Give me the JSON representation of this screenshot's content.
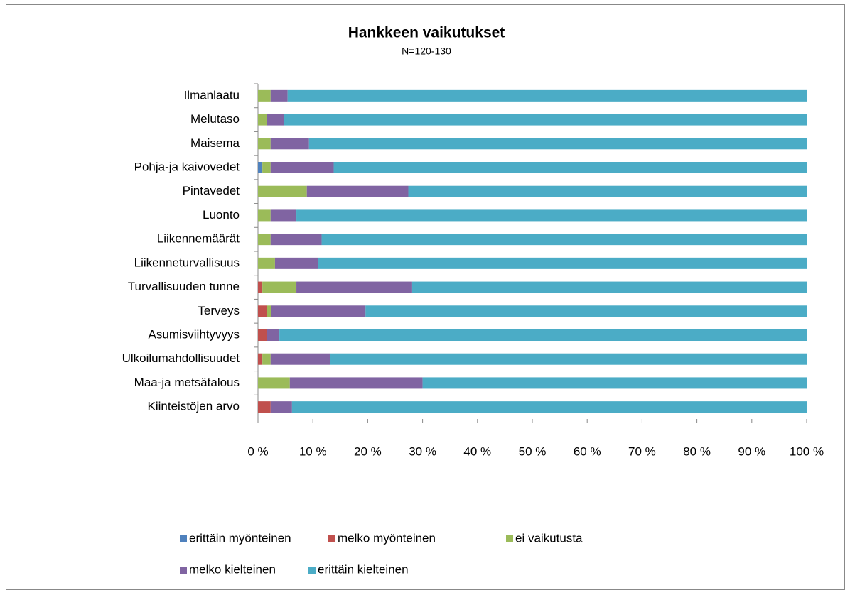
{
  "chart_data": {
    "type": "stacked-bar-horizontal",
    "title": "Hankkeen vaikutukset",
    "subtitle": "N=120-130",
    "categories": [
      "Ilmanlaatu",
      "Melutaso",
      "Maisema",
      "Pohja-ja kaivovedet",
      "Pintavedet",
      "Luonto",
      "Liikennemäärät",
      "Liikenneturvallisuus",
      "Turvallisuuden tunne",
      "Terveys",
      "Asumisviihtyvyys",
      "Ulkoilumahdollisuudet",
      "Maa-ja metsätalous",
      "Kiinteistöjen arvo"
    ],
    "series": [
      {
        "name": "erittäin myönteinen",
        "color": "#4f81bd",
        "values": [
          0,
          0,
          0,
          0.8,
          0,
          0,
          0,
          0,
          0,
          0,
          0,
          0,
          0,
          0
        ]
      },
      {
        "name": "melko myönteinen",
        "color": "#c0504d",
        "values": [
          0,
          0,
          0,
          0,
          0,
          0,
          0,
          0,
          0.8,
          1.6,
          1.6,
          0.8,
          0,
          2.3
        ]
      },
      {
        "name": "ei vaikutusta",
        "color": "#9bbb59",
        "values": [
          2.3,
          1.6,
          2.3,
          1.5,
          8.9,
          2.3,
          2.3,
          3.1,
          6.2,
          0.8,
          0,
          1.5,
          5.8,
          0
        ]
      },
      {
        "name": "melko kielteinen",
        "color": "#8064a2",
        "values": [
          3.1,
          3.1,
          7.0,
          11.5,
          18.5,
          4.7,
          9.3,
          7.8,
          21.1,
          17.2,
          2.3,
          10.9,
          24.2,
          3.9
        ]
      },
      {
        "name": "erittäin kielteinen",
        "color": "#4bacc6",
        "values": [
          94.6,
          95.3,
          90.7,
          86.2,
          72.6,
          93.0,
          88.4,
          89.1,
          71.9,
          80.4,
          96.1,
          86.8,
          70.0,
          93.8
        ]
      }
    ],
    "xlim": [
      0,
      100
    ],
    "xticks": [
      {
        "value": 0,
        "label": "0 %"
      },
      {
        "value": 10,
        "label": "10 %"
      },
      {
        "value": 20,
        "label": "20 %"
      },
      {
        "value": 30,
        "label": "30 %"
      },
      {
        "value": 40,
        "label": "40 %"
      },
      {
        "value": 50,
        "label": "50 %"
      },
      {
        "value": 60,
        "label": "60 %"
      },
      {
        "value": 70,
        "label": "70 %"
      },
      {
        "value": 80,
        "label": "80 %"
      },
      {
        "value": 90,
        "label": "90 %"
      },
      {
        "value": 100,
        "label": "100 %"
      }
    ],
    "legend": "bottom"
  }
}
